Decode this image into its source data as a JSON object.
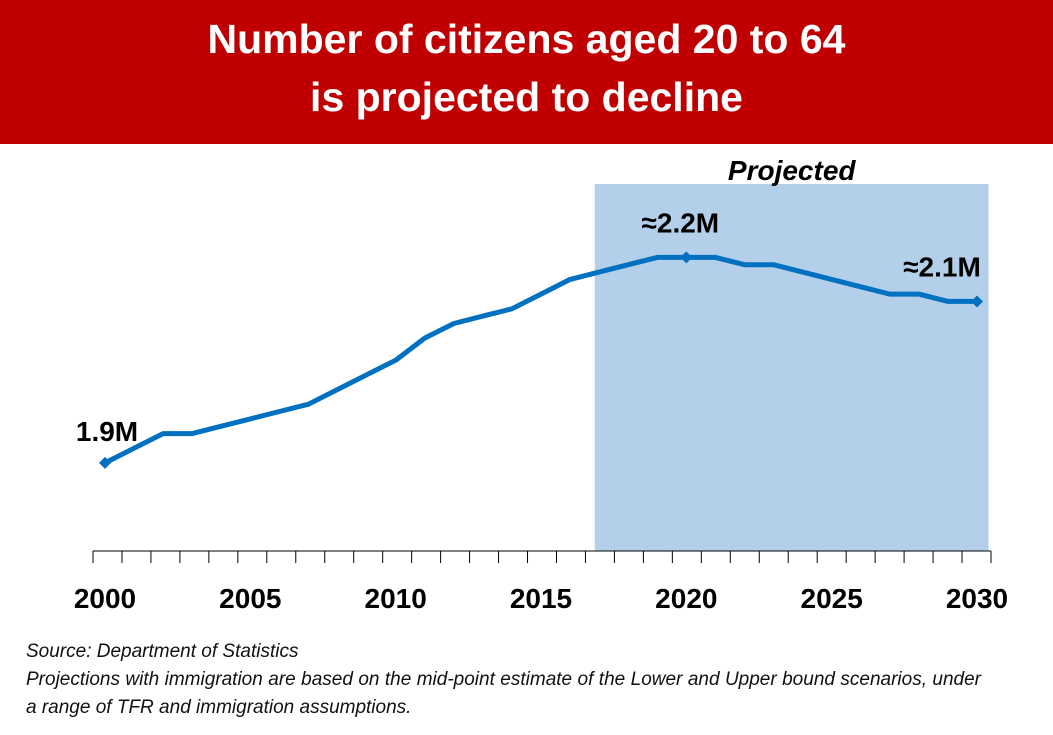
{
  "title": {
    "line1": "Number of citizens aged 20 to 64",
    "line2": "is projected to decline"
  },
  "colors": {
    "banner": "#c00000",
    "line": "#0070c0",
    "projection_shade": "#b4cfe9"
  },
  "chart_data": {
    "type": "line",
    "x": [
      2000,
      2001,
      2002,
      2003,
      2004,
      2005,
      2006,
      2007,
      2008,
      2009,
      2010,
      2011,
      2012,
      2013,
      2014,
      2015,
      2016,
      2017,
      2018,
      2019,
      2020,
      2021,
      2022,
      2023,
      2024,
      2025,
      2026,
      2027,
      2028,
      2029,
      2030
    ],
    "series": [
      {
        "values": [
          1.9,
          1.92,
          1.94,
          1.94,
          1.95,
          1.96,
          1.97,
          1.98,
          2.0,
          2.02,
          2.04,
          2.07,
          2.09,
          2.1,
          2.11,
          2.13,
          2.15,
          2.16,
          2.17,
          2.18,
          2.18,
          2.18,
          2.17,
          2.17,
          2.16,
          2.15,
          2.14,
          2.13,
          2.13,
          2.12,
          2.12
        ],
        "markers_at": [
          2000,
          2020,
          2030
        ]
      }
    ],
    "xticks": [
      2000,
      2005,
      2010,
      2015,
      2020,
      2025,
      2030
    ],
    "xlim": [
      2000,
      2030
    ],
    "ylim": [
      1.78,
      2.28
    ],
    "y_axis_shown": false,
    "grid": false,
    "shaded_region": {
      "from": 2016.85,
      "to": 2030.4,
      "label": "Projected"
    },
    "annotations": [
      {
        "x": 2000,
        "text": "1.9M"
      },
      {
        "x": 2020,
        "text": "≈2.2M"
      },
      {
        "x": 2030,
        "text": "≈2.1M"
      }
    ]
  },
  "notes": {
    "source": "Source: Department of Statistics",
    "description": "Projections with immigration are based on the mid-point estimate of the Lower and Upper bound scenarios, under a range of TFR and immigration assumptions."
  }
}
